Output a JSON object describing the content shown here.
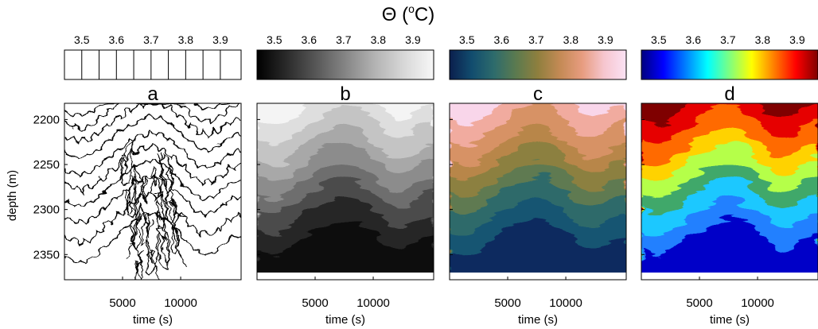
{
  "figure": {
    "title_main": "Θ (",
    "title_sup": "o",
    "title_unit": "C)"
  },
  "chart_data": {
    "type": "heatmap",
    "colorbar_ticks": [
      "3.5",
      "3.6",
      "3.7",
      "3.8",
      "3.9"
    ],
    "colorbar_range": [
      3.45,
      3.96
    ],
    "xlabel": "time (s)",
    "ylabel": "depth (m)",
    "xticks": [
      "5000",
      "10000"
    ],
    "xtick_values": [
      5000,
      10000
    ],
    "xlim": [
      0,
      15200
    ],
    "yticks": [
      "2200",
      "2250",
      "2300",
      "2350"
    ],
    "ytick_values": [
      2200,
      2250,
      2300,
      2350
    ],
    "ylim": [
      2182,
      2378
    ],
    "panels": [
      {
        "label": "a",
        "colormap": "contours"
      },
      {
        "label": "b",
        "colormap": "gray"
      },
      {
        "label": "c",
        "colormap": "blue-pink"
      },
      {
        "label": "d",
        "colormap": "jet"
      }
    ],
    "colormaps": {
      "gray": [
        "#000000",
        "#2a2a2a",
        "#575757",
        "#858585",
        "#b3b3b3",
        "#d8d8d8",
        "#f7f7f7"
      ],
      "blue-pink": [
        "#0b1f4d",
        "#114c6e",
        "#2d6b6c",
        "#5b7a4f",
        "#8f7f3e",
        "#c48a55",
        "#e79c7f",
        "#f6c6cf",
        "#fbe2f4"
      ],
      "jet": [
        "#00007f",
        "#0000ff",
        "#007fff",
        "#00ffff",
        "#7fff7f",
        "#ffff00",
        "#ff7f00",
        "#ff0000",
        "#7f0000"
      ]
    }
  }
}
